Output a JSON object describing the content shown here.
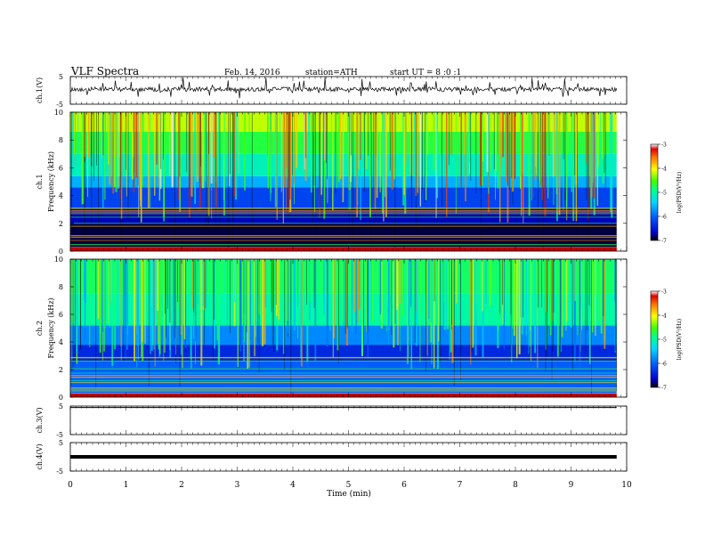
{
  "header": {
    "title": "VLF Spectra",
    "date": "Feb. 14, 2016",
    "station": "station=ATH",
    "start": "start UT =  8 :0 :1"
  },
  "chart_data": [
    {
      "type": "line",
      "title": "",
      "ylabel": "ch.1(V)",
      "ylim": [
        -5,
        5
      ],
      "yticks": [
        "5",
        "-5"
      ],
      "description_level": 0.4,
      "series": [
        {
          "values": []
        }
      ]
    },
    {
      "type": "heatmap",
      "ylabel_top": "ch.1",
      "ylabel": "Frequency (kHz)",
      "ylim": [
        0,
        10
      ],
      "yticks": [
        "0",
        "2",
        "4",
        "6",
        "8",
        "10"
      ],
      "xlim": [
        0,
        10
      ],
      "colorbar": {
        "ticks": [
          "-3",
          "-4",
          "-5",
          "-6",
          "-7"
        ],
        "range": [
          -7,
          -3
        ],
        "label": "log(PSD(V²/Hz)"
      },
      "bands": [
        {
          "from": 0,
          "to": 0.3,
          "level": -3.4
        },
        {
          "from": 0.3,
          "to": 2.0,
          "level": -6.9
        },
        {
          "from": 2.0,
          "to": 3.1,
          "level": -6.7
        },
        {
          "from": 3.1,
          "to": 4.6,
          "level": -6.2
        },
        {
          "from": 4.6,
          "to": 5.4,
          "level": -5.6
        },
        {
          "from": 5.4,
          "to": 7.0,
          "level": -5.1
        },
        {
          "from": 7.0,
          "to": 8.6,
          "level": -4.7
        },
        {
          "from": 8.6,
          "to": 10.0,
          "level": -4.2
        }
      ]
    },
    {
      "type": "heatmap",
      "ylabel_top": "ch.2",
      "ylabel": "Frequency (kHz)",
      "ylim": [
        0,
        10
      ],
      "yticks": [
        "0",
        "2",
        "4",
        "6",
        "8",
        "10"
      ],
      "xlim": [
        0,
        10
      ],
      "colorbar": {
        "ticks": [
          "-3",
          "-4",
          "-5",
          "-6",
          "-7"
        ],
        "range": [
          -7,
          -3
        ],
        "label": "log(PSD(V²/Hz)"
      },
      "bands": [
        {
          "from": 0,
          "to": 0.3,
          "level": -3.6
        },
        {
          "from": 0.3,
          "to": 2.6,
          "level": -6.0
        },
        {
          "from": 2.6,
          "to": 3.8,
          "level": -6.4
        },
        {
          "from": 3.8,
          "to": 5.2,
          "level": -5.8
        },
        {
          "from": 5.2,
          "to": 7.5,
          "level": -5.0
        },
        {
          "from": 7.5,
          "to": 10.0,
          "level": -4.8
        }
      ]
    },
    {
      "type": "line",
      "ylabel": "ch.3(V)",
      "ylim": [
        -5,
        5
      ],
      "yticks": [
        "5",
        "-5"
      ],
      "description_level": 4.8,
      "series": [
        {
          "values": []
        }
      ]
    },
    {
      "type": "line",
      "ylabel": "ch.4(V)",
      "ylim": [
        -5,
        5
      ],
      "yticks": [
        "5",
        "-5"
      ],
      "description_level": 0,
      "series": [
        {
          "values": []
        }
      ]
    }
  ],
  "xaxis": {
    "label": "Time (min)",
    "ticks": [
      "0",
      "1",
      "2",
      "3",
      "4",
      "5",
      "6",
      "7",
      "8",
      "9",
      "10"
    ],
    "range": [
      0,
      10
    ],
    "data_end": 9.82
  }
}
